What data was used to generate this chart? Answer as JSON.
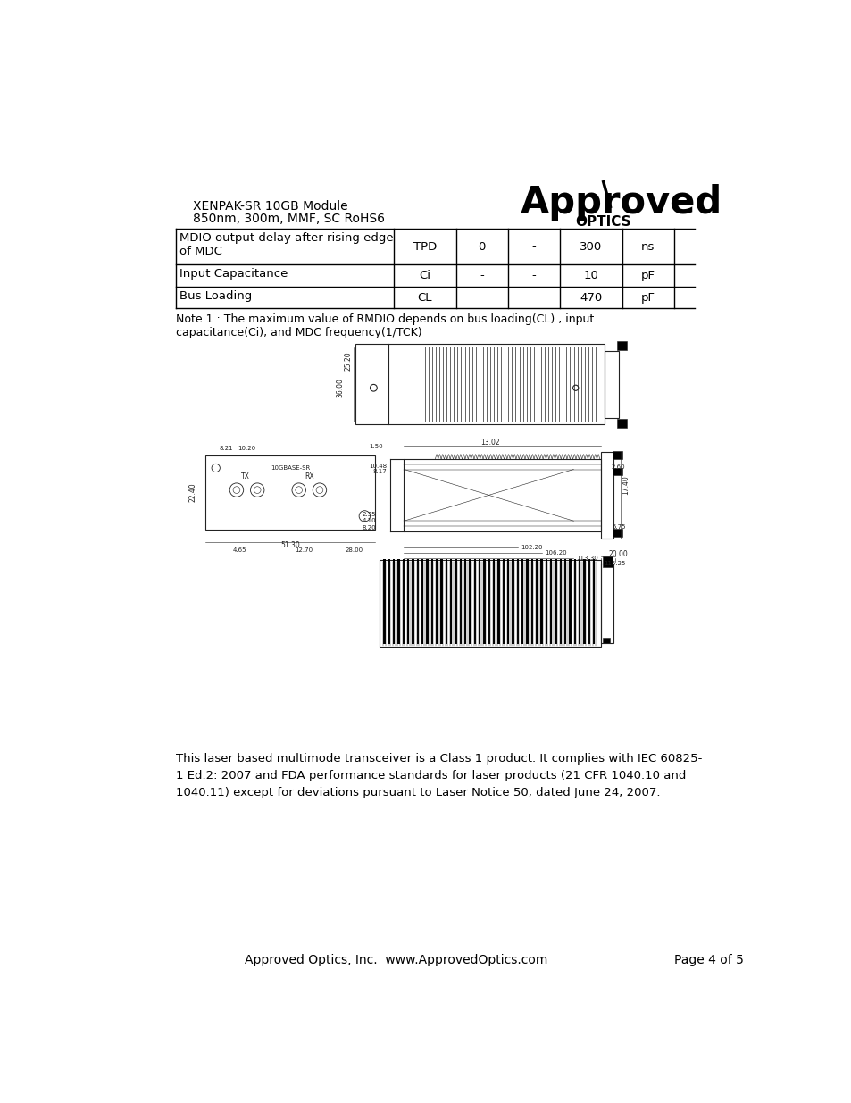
{
  "bg_color": "#ffffff",
  "header_title_line1": "XENPAK-SR 10GB Module",
  "header_title_line2": "850nm, 300m, MMF, SC RoHS6",
  "approved_text": "Approved",
  "optics_text": "OPTICS",
  "table_rows": [
    [
      "MDIO output delay after rising edge\nof MDC",
      "TPD",
      "0",
      "-",
      "300",
      "ns"
    ],
    [
      "Input Capacitance",
      "Ci",
      "-",
      "-",
      "10",
      "pF"
    ],
    [
      "Bus Loading",
      "CL",
      "-",
      "-",
      "470",
      "pF"
    ]
  ],
  "note_text": "Note 1 : The maximum value of RMDIO depends on bus loading(CL) , input\ncapacitance(Ci), and MDC frequency(1/TCK)",
  "laser_text": "This laser based multimode transceiver is a Class 1 product. It complies with IEC 60825-\n1 Ed.2: 2007 and FDA performance standards for laser products (21 CFR 1040.10 and\n1040.11) except for deviations pursuant to Laser Notice 50, dated June 24, 2007.",
  "footer_left": "Approved Optics, Inc.  www.ApprovedOptics.com",
  "footer_right": "Page 4 of 5",
  "text_color": "#000000",
  "table_border_color": "#000000",
  "draw_color": "#222222"
}
